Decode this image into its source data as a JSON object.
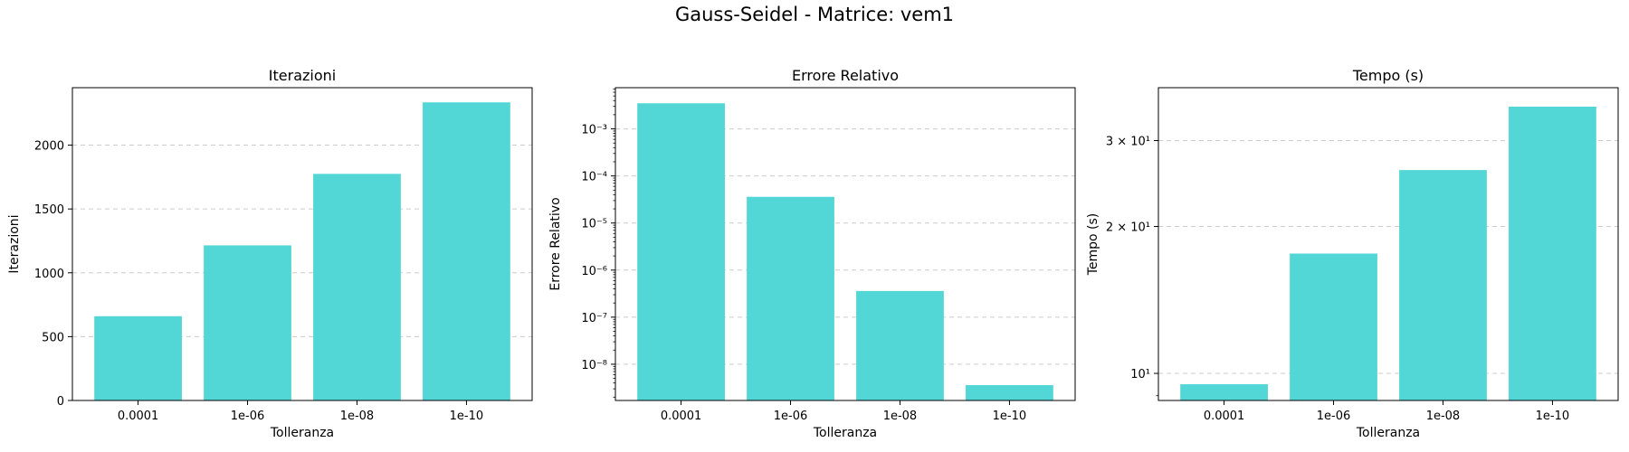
{
  "suptitle": "Gauss-Seidel - Matrice: vem1",
  "colors": {
    "bar": "#52d6d6",
    "grid": "#cccccc",
    "axis": "#000000"
  },
  "chart_data": [
    {
      "type": "bar",
      "title": "Iterazioni",
      "xlabel": "Tolleranza",
      "ylabel": "Iterazioni",
      "categories": [
        "0.0001",
        "1e-06",
        "1e-08",
        "1e-10"
      ],
      "values": [
        660,
        1215,
        1775,
        2335
      ],
      "yscale": "linear",
      "ylim": [
        0,
        2450
      ],
      "yticks": [
        0,
        500,
        1000,
        1500,
        2000
      ],
      "ytick_labels": [
        "0",
        "500",
        "1000",
        "1500",
        "2000"
      ],
      "grid": "y-dashed"
    },
    {
      "type": "bar",
      "title": "Errore Relativo",
      "xlabel": "Tolleranza",
      "ylabel": "Errore Relativo",
      "categories": [
        "0.0001",
        "1e-06",
        "1e-08",
        "1e-10"
      ],
      "values": [
        0.0035,
        3.6e-05,
        3.6e-07,
        3.6e-09
      ],
      "yscale": "log",
      "ylim": [
        1.7e-09,
        0.0075
      ],
      "yticks": [
        1e-08,
        1e-07,
        1e-06,
        1e-05,
        0.0001,
        0.001
      ],
      "ytick_labels": [
        "10⁻⁸",
        "10⁻⁷",
        "10⁻⁶",
        "10⁻⁵",
        "10⁻⁴",
        "10⁻³"
      ],
      "grid": "y-dashed"
    },
    {
      "type": "bar",
      "title": "Tempo (s)",
      "xlabel": "Tolleranza",
      "ylabel": "Tempo (s)",
      "categories": [
        "0.0001",
        "1e-06",
        "1e-08",
        "1e-10"
      ],
      "values": [
        9.5,
        17.6,
        26.1,
        35.2
      ],
      "yscale": "log",
      "ylim": [
        8.8,
        38.5
      ],
      "yticks": [
        10,
        20,
        30
      ],
      "ytick_labels": [
        "10¹",
        "2 × 10¹",
        "3 × 10¹"
      ],
      "grid": "y-dashed"
    }
  ]
}
